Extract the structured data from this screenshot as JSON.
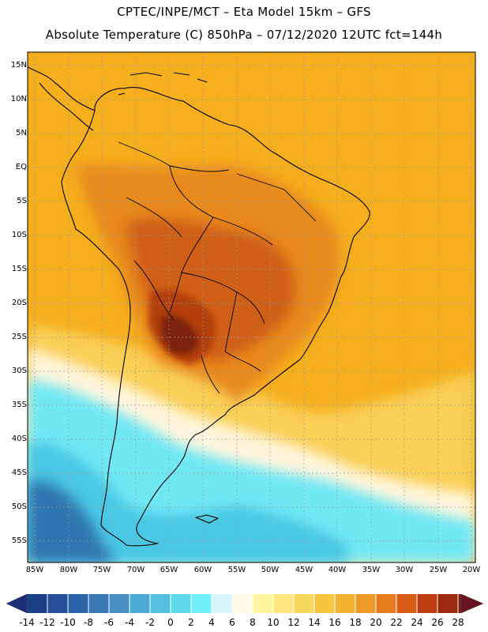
{
  "header": {
    "line1": "CPTEC/INPE/MCT –  Eta Model 15km – GFS",
    "line2": "Absolute Temperature (C) 850hPa – 07/12/2020 12UTC fct=144h"
  },
  "map": {
    "lat_labels": [
      "15N",
      "10N",
      "5N",
      "EQ",
      "5S",
      "10S",
      "15S",
      "20S",
      "25S",
      "30S",
      "35S",
      "40S",
      "45S",
      "50S",
      "55S"
    ],
    "lon_labels": [
      "85W",
      "80W",
      "75W",
      "70W",
      "65W",
      "60W",
      "55W",
      "50W",
      "45W",
      "40W",
      "35W",
      "30W",
      "25W",
      "20W"
    ],
    "colors": {
      "ocean_warm": "#f5ae1c",
      "land_warm": "#e8891f",
      "hot": "#cf5e16",
      "hotter": "#b33f0f",
      "hottest": "#7c2410",
      "mild": "#f9cf56",
      "cool": "#fff5dc",
      "cold": "#6fe8f4",
      "colder": "#49c7e3",
      "coldest": "#2f76b1",
      "coast": "#000000"
    }
  },
  "colorbar": {
    "labels": [
      "-14",
      "-12",
      "-10",
      "-8",
      "-6",
      "-4",
      "-2",
      "0",
      "2",
      "4",
      "6",
      "8",
      "10",
      "12",
      "14",
      "16",
      "18",
      "20",
      "22",
      "24",
      "26",
      "28"
    ],
    "colors": [
      "#1b3f86",
      "#244f99",
      "#2d63a8",
      "#3a7ab7",
      "#4a8fc4",
      "#4ea8d4",
      "#52c1de",
      "#5fd9ea",
      "#6ff0f8",
      "#d6f6fb",
      "#fffbe8",
      "#fff59e",
      "#fde77a",
      "#f9d65c",
      "#f4c641",
      "#f1b331",
      "#ec9a25",
      "#e57a1e",
      "#d75a15",
      "#be3f10",
      "#9b2a0e",
      "#7a1c0f"
    ],
    "left_arrow_color": "#1d2f7a",
    "right_arrow_color": "#6b1220"
  }
}
